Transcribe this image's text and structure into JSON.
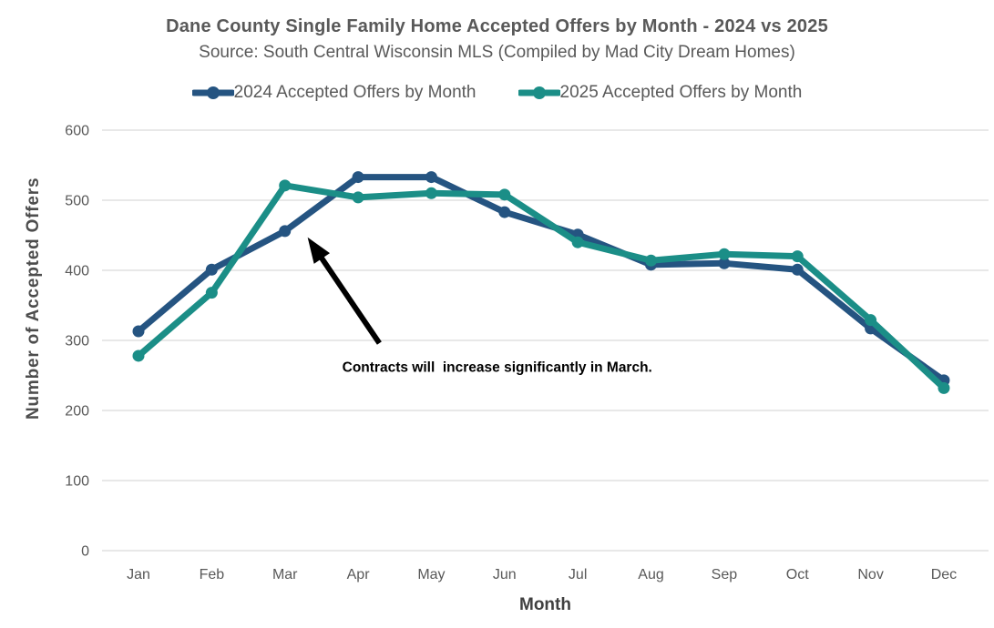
{
  "header": {
    "title": "Dane County Single Family Home Accepted Offers by Month - 2024 vs 2025",
    "subtitle": "Source: South Central Wisconsin MLS (Compiled by Mad City Dream Homes)"
  },
  "chart_data": {
    "type": "line",
    "categories": [
      "Jan",
      "Feb",
      "Mar",
      "Apr",
      "May",
      "Jun",
      "Jul",
      "Aug",
      "Sep",
      "Oct",
      "Nov",
      "Dec"
    ],
    "series": [
      {
        "name": "2024 Accepted Offers by Month",
        "color": "#255481",
        "values": [
          313,
          401,
          456,
          533,
          533,
          483,
          451,
          408,
          410,
          401,
          317,
          243
        ]
      },
      {
        "name": "2025 Accepted Offers by Month",
        "color": "#1B8E87",
        "values": [
          278,
          368,
          521,
          504,
          510,
          508,
          440,
          414,
          423,
          420,
          329,
          232
        ]
      }
    ],
    "xlabel": "Month",
    "ylabel": "Number of Accepted Offers",
    "ylim": [
      0,
      600
    ],
    "ytick_step": 100,
    "grid": true,
    "legend_position": "top",
    "annotation": {
      "text": "Contracts will  increase significantly in March.",
      "text_month_index": 4.9,
      "text_value": 262,
      "arrow_color": "#000000",
      "arrow": {
        "from_month_index": 3.29,
        "from_value": 296,
        "to_month_index": 2.31,
        "to_value": 447
      }
    },
    "colors": {
      "grid": "#d9d9d9",
      "tick_label": "#595959"
    }
  }
}
